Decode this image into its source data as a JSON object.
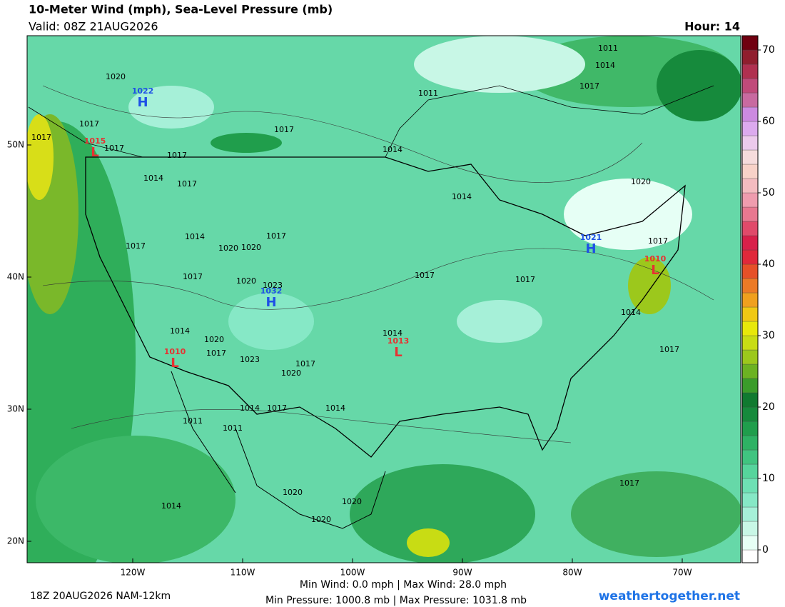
{
  "header": {
    "title": "10-Meter Wind (mph), Sea-Level Pressure (mb)",
    "valid": "Valid: 08Z 21AUG2026",
    "hour": "Hour: 14"
  },
  "map": {
    "lat_ticks": [
      {
        "value": 50,
        "label": "50N"
      },
      {
        "value": 40,
        "label": "40N"
      },
      {
        "value": 30,
        "label": "30N"
      },
      {
        "value": 20,
        "label": "20N"
      }
    ],
    "lon_ticks": [
      {
        "value": -120,
        "label": "120W"
      },
      {
        "value": -110,
        "label": "110W"
      },
      {
        "value": -100,
        "label": "100W"
      },
      {
        "value": -90,
        "label": "90W"
      },
      {
        "value": -80,
        "label": "80W"
      },
      {
        "value": -70,
        "label": "70W"
      }
    ],
    "pressure_centers": [
      {
        "type": "H",
        "pressure": "1022"
      },
      {
        "type": "L",
        "pressure": "1015"
      },
      {
        "type": "H",
        "pressure": "1021"
      },
      {
        "type": "L",
        "pressure": "1010"
      },
      {
        "type": "H",
        "pressure": "1032"
      },
      {
        "type": "L",
        "pressure": "1010"
      },
      {
        "type": "L",
        "pressure": "1013"
      }
    ],
    "isobar_labels": [
      "1020",
      "1017",
      "1017",
      "1017",
      "1014",
      "1017",
      "1017",
      "1011",
      "1011",
      "1014",
      "1017",
      "1014",
      "1014",
      "1020",
      "1014",
      "1017",
      "1020",
      "1020",
      "1017",
      "1017",
      "1020",
      "1023",
      "1017",
      "1017",
      "1017",
      "1014",
      "1014",
      "1020",
      "1017",
      "1023",
      "1020",
      "1017",
      "1014",
      "1017",
      "1014",
      "1017",
      "1014",
      "1011",
      "1011",
      "1020",
      "1020",
      "1020",
      "1014",
      "1017",
      "1017"
    ]
  },
  "colorbar": {
    "ticks": [
      0,
      10,
      20,
      30,
      40,
      50,
      60,
      70
    ],
    "colors": [
      "#ffffff",
      "#e6fff5",
      "#c8f7e6",
      "#a6f0d8",
      "#86e8c6",
      "#6ee0b4",
      "#56d49c",
      "#40c480",
      "#2eb264",
      "#209e4c",
      "#168a3c",
      "#107a30",
      "#3a9c2a",
      "#6cb222",
      "#9cc81c",
      "#c8dc14",
      "#e8e80a",
      "#f0c814",
      "#f0a01e",
      "#ec7a26",
      "#e65028",
      "#e0283a",
      "#d8204a",
      "#e04a6a",
      "#e87890",
      "#ef9cae",
      "#f4bcc0",
      "#f8d2c8",
      "#f6dcdc",
      "#eccaec",
      "#dcaaee",
      "#cc8ae0",
      "#c86aa0",
      "#c04a7a",
      "#b03050",
      "#901e2e",
      "#700010"
    ]
  },
  "footer": {
    "run": "18Z 20AUG2026 NAM-12km",
    "wind": "Min Wind:  0.0 mph | Max Wind: 28.0 mph",
    "pressure": "Min Pressure: 1000.8 mb | Max Pressure: 1031.8 mb",
    "site": "weathertogether.net"
  }
}
